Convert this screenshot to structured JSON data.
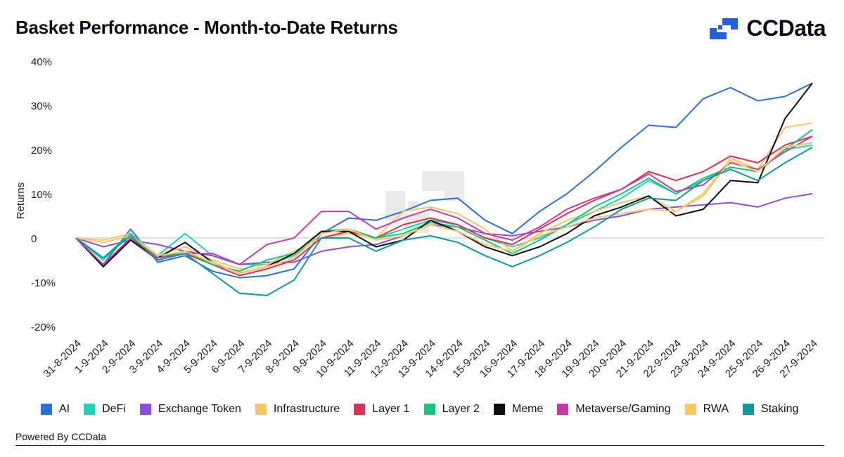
{
  "header": {
    "title": "Basket Performance - Month-to-Date Returns",
    "logo_text": "CCData"
  },
  "footer": {
    "powered_by": "Powered By CCData"
  },
  "chart_data": {
    "type": "line",
    "title": "Basket Performance - Month-to-Date Returns",
    "ylabel": "Returns",
    "xlabel": "",
    "ylim": [
      -20,
      40
    ],
    "yticks": [
      40,
      30,
      20,
      10,
      0,
      -10,
      -20
    ],
    "ytick_labels": [
      "40%",
      "30%",
      "20%",
      "10%",
      "0",
      "-10%",
      "-20%"
    ],
    "grid": false,
    "legend": "bottom",
    "categories": [
      "31-8-2024",
      "1-9-2024",
      "2-9-2024",
      "3-9-2024",
      "4-9-2024",
      "5-9-2024",
      "6-9-2024",
      "7-9-2024",
      "8-9-2024",
      "9-9-2024",
      "10-9-2024",
      "11-9-2024",
      "12-9-2024",
      "13-9-2024",
      "14-9-2024",
      "15-9-2024",
      "16-9-2024",
      "17-9-2024",
      "18-9-2024",
      "19-9-2024",
      "20-9-2024",
      "21-9-2024",
      "22-9-2024",
      "23-9-2024",
      "24-9-2024",
      "25-9-2024",
      "26-9-2024",
      "27-9-2024"
    ],
    "series": [
      {
        "name": "AI",
        "color": "#2a6fdb",
        "values": [
          0,
          -6,
          2,
          -5.5,
          -4,
          -7.5,
          -9,
          -8.5,
          -7,
          1,
          4.5,
          4,
          6,
          8.5,
          9,
          4,
          1,
          6,
          10,
          15,
          20.5,
          25.5,
          25,
          31.5,
          34,
          31,
          32,
          35
        ]
      },
      {
        "name": "DeFi",
        "color": "#1ed3b8",
        "values": [
          0,
          -5,
          1,
          -4,
          1,
          -4,
          -6,
          -6,
          -4,
          1,
          2,
          0,
          2,
          4,
          3,
          0,
          -2,
          0,
          3,
          6,
          9,
          13,
          10,
          13,
          16,
          15,
          20,
          21
        ]
      },
      {
        "name": "Exchange Token",
        "color": "#8a4de6",
        "values": [
          0,
          -2,
          -0.5,
          -1.5,
          -3,
          -4,
          -6,
          -5.5,
          -5.5,
          -3,
          -2,
          -1.5,
          0.5,
          3,
          2.5,
          1,
          0.5,
          1.5,
          2.5,
          4,
          5,
          6.5,
          7,
          7.5,
          8,
          7,
          9,
          10
        ]
      },
      {
        "name": "Infrastructure",
        "color": "#f7c66a",
        "values": [
          0,
          -0.5,
          1,
          -4,
          -2,
          -5,
          -7,
          -6,
          -3,
          0,
          1,
          0,
          6,
          7,
          5.5,
          2,
          -3,
          1,
          4,
          6,
          8,
          9.5,
          6,
          10,
          18,
          15.5,
          25,
          26
        ]
      },
      {
        "name": "Layer 1",
        "color": "#e0304f",
        "values": [
          0,
          -6,
          -0.5,
          -5,
          -3.5,
          -6,
          -8.5,
          -7,
          -5,
          0,
          1.5,
          0,
          3,
          4.5,
          3,
          0,
          -1.5,
          2,
          5.5,
          8.5,
          11,
          15,
          13,
          15,
          18.5,
          17,
          21,
          23
        ]
      },
      {
        "name": "Layer 2",
        "color": "#15c77e",
        "values": [
          0,
          -4.5,
          1,
          -4.5,
          -3,
          -6,
          -7.5,
          -5,
          -3.5,
          1.5,
          2,
          0,
          1,
          3.5,
          2.5,
          -0.5,
          -3.5,
          -0.5,
          3,
          7,
          10,
          13.5,
          10,
          13.5,
          16,
          15,
          20,
          24.5
        ]
      },
      {
        "name": "Meme",
        "color": "#0b0d14",
        "values": [
          0,
          -6.5,
          -0.5,
          -4.5,
          -1,
          -5.5,
          -8,
          -6.5,
          -3.5,
          1.5,
          1.5,
          -2,
          -0.5,
          4,
          1.5,
          -2,
          -4,
          -2,
          1,
          5,
          7,
          9.5,
          5,
          6.5,
          13,
          12.5,
          27,
          35
        ]
      },
      {
        "name": "Metaverse/Gaming",
        "color": "#c83ba6",
        "values": [
          0,
          -6,
          0,
          -4.5,
          -3.5,
          -3.5,
          -6,
          -1.5,
          0,
          6,
          6,
          2,
          4.5,
          6.5,
          4.5,
          1,
          -0.5,
          2.5,
          6.5,
          9,
          11,
          14.5,
          10.5,
          12,
          17,
          15.5,
          19.5,
          23
        ]
      },
      {
        "name": "RWA",
        "color": "#ffc85e",
        "values": [
          0,
          -1,
          0.5,
          -4,
          -3,
          -5.5,
          -8,
          -6.5,
          -4.5,
          1,
          2,
          -0.5,
          0.5,
          3,
          1.5,
          -1.5,
          -3,
          0.5,
          2.5,
          4.5,
          5.5,
          6.5,
          6,
          9.5,
          17.5,
          15,
          20.5,
          21.5
        ]
      },
      {
        "name": "Staking",
        "color": "#0a9b9b",
        "values": [
          0,
          -4.5,
          0.5,
          -5,
          -3.5,
          -8,
          -12.5,
          -13,
          -9.5,
          0,
          0,
          -3,
          -0.5,
          0.5,
          -1,
          -4,
          -6.5,
          -4,
          -1,
          2.5,
          6.5,
          9,
          8.5,
          13,
          15.5,
          13,
          17,
          20.5
        ]
      }
    ]
  }
}
